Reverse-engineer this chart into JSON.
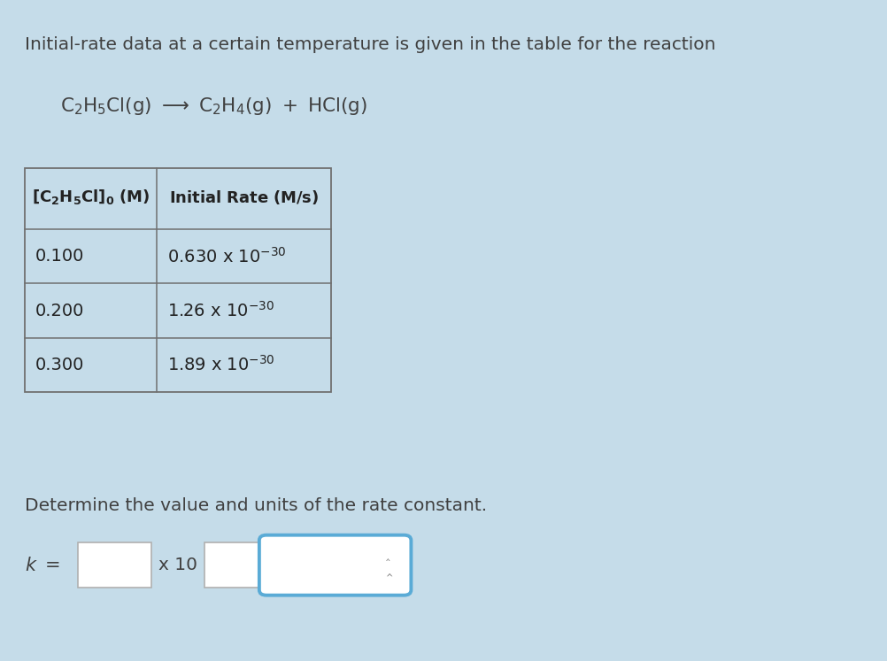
{
  "bg_color": "#c5dce9",
  "title_text": "Initial-rate data at a certain temperature is given in the table for the reaction",
  "reaction": {
    "part1": "C",
    "sub1": "2",
    "part2": "H",
    "sub2": "5",
    "part3": "Cl(g) ⟶ C",
    "sub3": "2",
    "part4": "H",
    "sub4": "4",
    "part5": "(g) + HCl(g)"
  },
  "table_header_col1": "[C",
  "table_header_col1b": "2",
  "table_header_col1c": "H",
  "table_header_col1d": "5",
  "table_header_col1e": "Cl]",
  "table_header_col1f": "0",
  "table_header_col1g": " (M)",
  "table_header_col2": "Initial Rate (M/s)",
  "col1": [
    "0.100",
    "0.200",
    "0.300"
  ],
  "col2_main": [
    "0.630 x 10",
    "1.26 x 10",
    "1.89 x 10"
  ],
  "col2_exp": [
    "-30",
    "-30",
    "-30"
  ],
  "bottom_text": "Determine the value and units of the rate constant.",
  "k_label": "k =",
  "x10_label": "x 10",
  "arrow_symbol": "⟶",
  "updown_arrow": "‸‹"
}
